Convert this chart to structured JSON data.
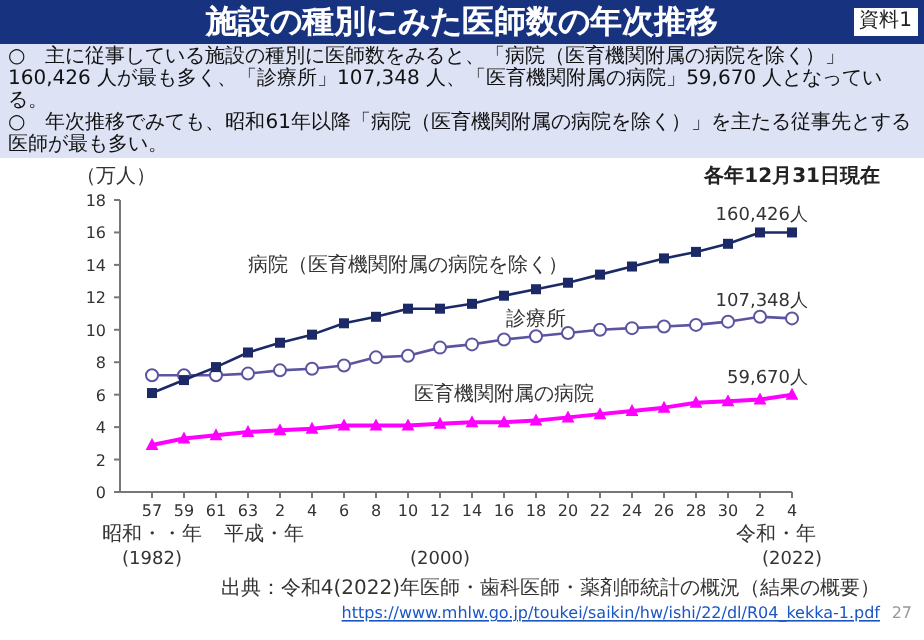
{
  "chart_data": {
    "type": "line",
    "title": "施設の種別にみた医師数の年次推移",
    "subtitle": "○　主に従事している施設の種別に医師数をみると、「病院（医育機関附属の病院を除く）」160,426 人が最も多く、「診療所」107,348 人、「医育機関附属の病院」59,670 人となっている。",
    "ylabel": "（万人）",
    "categories": [
      "57",
      "59",
      "61",
      "63",
      "2",
      "4",
      "6",
      "8",
      "10",
      "12",
      "14",
      "16",
      "18",
      "20",
      "22",
      "24",
      "26",
      "28",
      "30",
      "2",
      "4"
    ],
    "ylim": [
      0,
      18
    ],
    "yticks": [
      0,
      2,
      4,
      6,
      8,
      10,
      12,
      14,
      16,
      18
    ],
    "grid": false,
    "series": [
      {
        "name": "病院（医育機関附属の病院を除く）",
        "color": "#1b2a66",
        "marker": "square",
        "values": [
          6.1,
          6.9,
          7.7,
          8.6,
          9.2,
          9.7,
          10.4,
          10.8,
          11.3,
          11.3,
          11.6,
          12.1,
          12.5,
          12.9,
          13.4,
          13.9,
          14.4,
          14.8,
          15.3,
          16.0,
          16.0
        ]
      },
      {
        "name": "診療所",
        "color": "#5b55a0",
        "marker": "circle",
        "values": [
          7.2,
          7.2,
          7.2,
          7.3,
          7.5,
          7.6,
          7.8,
          8.3,
          8.4,
          8.9,
          9.1,
          9.4,
          9.6,
          9.8,
          10.0,
          10.1,
          10.2,
          10.3,
          10.5,
          10.8,
          10.7
        ]
      },
      {
        "name": "医育機関附属の病院",
        "color": "#ff00ff",
        "marker": "triangle",
        "values": [
          2.9,
          3.3,
          3.5,
          3.7,
          3.8,
          3.9,
          4.1,
          4.1,
          4.1,
          4.2,
          4.3,
          4.3,
          4.4,
          4.6,
          4.8,
          5.0,
          5.2,
          5.5,
          5.6,
          5.7,
          6.0
        ]
      }
    ],
    "annotations": [
      "○　年次推移でみても、昭和61年以降「病院（医育機関附属の病院を除く）」を主たる従事先とする医師が最も多い。",
      "各年12月31日現在",
      "昭和・・年",
      "平成・年",
      "令和・年",
      "(1982)",
      "(2000)",
      "(2022)",
      "出典：令和4(2022)年医師・歯科医師・薬剤師統計の概況（結果の概要）",
      "https://www.mhlw.go.jp/toukei/saikin/hw/ishi/22/dl/R04_kekka-1.pdf",
      "資料1",
      "27",
      "160,426人",
      "107,348人",
      "59,670人"
    ]
  }
}
